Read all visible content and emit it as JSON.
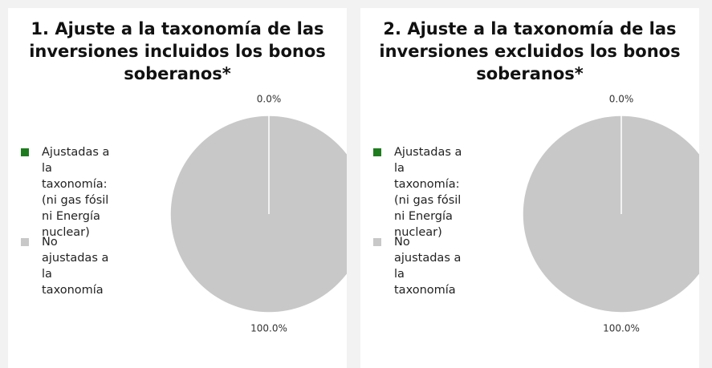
{
  "chart_data": [
    {
      "type": "pie",
      "title": "1. Ajuste a la taxonomía de las inversiones incluidos los bonos soberanos*",
      "categories": [
        "Ajustadas a la taxonomía: (ni gas fósil ni Energía nuclear)",
        "No ajustadas a la taxonomía"
      ],
      "values": [
        0,
        100
      ],
      "value_labels": [
        "0.0%",
        "100.0%"
      ],
      "colors": [
        "#1e7b1e",
        "#c8c8c8"
      ],
      "legend": "left"
    },
    {
      "type": "pie",
      "title": "2. Ajuste a la taxonomía de las inversiones excluidos los bonos soberanos*",
      "categories": [
        "Ajustadas a la taxonomía: (ni gas fósil ni Energía nuclear)",
        "No ajustadas a la taxonomía"
      ],
      "values": [
        0,
        100
      ],
      "value_labels": [
        "0.0%",
        "100.0%"
      ],
      "colors": [
        "#1e7b1e",
        "#c8c8c8"
      ],
      "legend": "left"
    }
  ]
}
